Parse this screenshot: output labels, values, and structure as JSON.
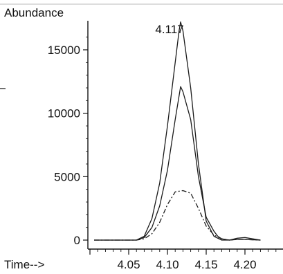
{
  "chart_data": {
    "type": "line",
    "ylabel": "Abundance",
    "xlabel": "Time-->",
    "peak_annotation": "4.117",
    "x_ticks": [
      "4.05",
      "4.10",
      "4.15",
      "4.20"
    ],
    "y_ticks": [
      "0",
      "5000",
      "10000",
      "15000"
    ],
    "xlim": [
      4.0,
      4.22
    ],
    "ylim": [
      0,
      17500
    ],
    "grid": false,
    "series": [
      {
        "style": "solid",
        "x": [
          4.0,
          4.06,
          4.07,
          4.08,
          4.09,
          4.1,
          4.11,
          4.115,
          4.117,
          4.12,
          4.13,
          4.14,
          4.15,
          4.16,
          4.17,
          4.18,
          4.19,
          4.2,
          4.22
        ],
        "y": [
          0,
          0,
          300,
          1700,
          4500,
          9000,
          14000,
          16500,
          17200,
          16500,
          12000,
          6000,
          1500,
          300,
          0,
          0,
          50,
          50,
          0
        ]
      },
      {
        "style": "solid",
        "x": [
          4.0,
          4.06,
          4.07,
          4.08,
          4.09,
          4.1,
          4.11,
          4.117,
          4.12,
          4.13,
          4.14,
          4.15,
          4.16,
          4.165,
          4.17,
          4.18,
          4.19,
          4.2,
          4.22
        ],
        "y": [
          0,
          0,
          200,
          1000,
          2700,
          5500,
          9500,
          12100,
          11700,
          9500,
          5000,
          1800,
          700,
          300,
          100,
          0,
          150,
          200,
          0
        ]
      },
      {
        "style": "dashed",
        "x": [
          4.0,
          4.06,
          4.07,
          4.08,
          4.09,
          4.1,
          4.11,
          4.12,
          4.13,
          4.14,
          4.15,
          4.16,
          4.17,
          4.18,
          4.19,
          4.2,
          4.22
        ],
        "y": [
          0,
          0,
          100,
          500,
          1400,
          2800,
          3800,
          3900,
          3700,
          2500,
          1100,
          400,
          100,
          0,
          50,
          50,
          0
        ]
      }
    ]
  }
}
